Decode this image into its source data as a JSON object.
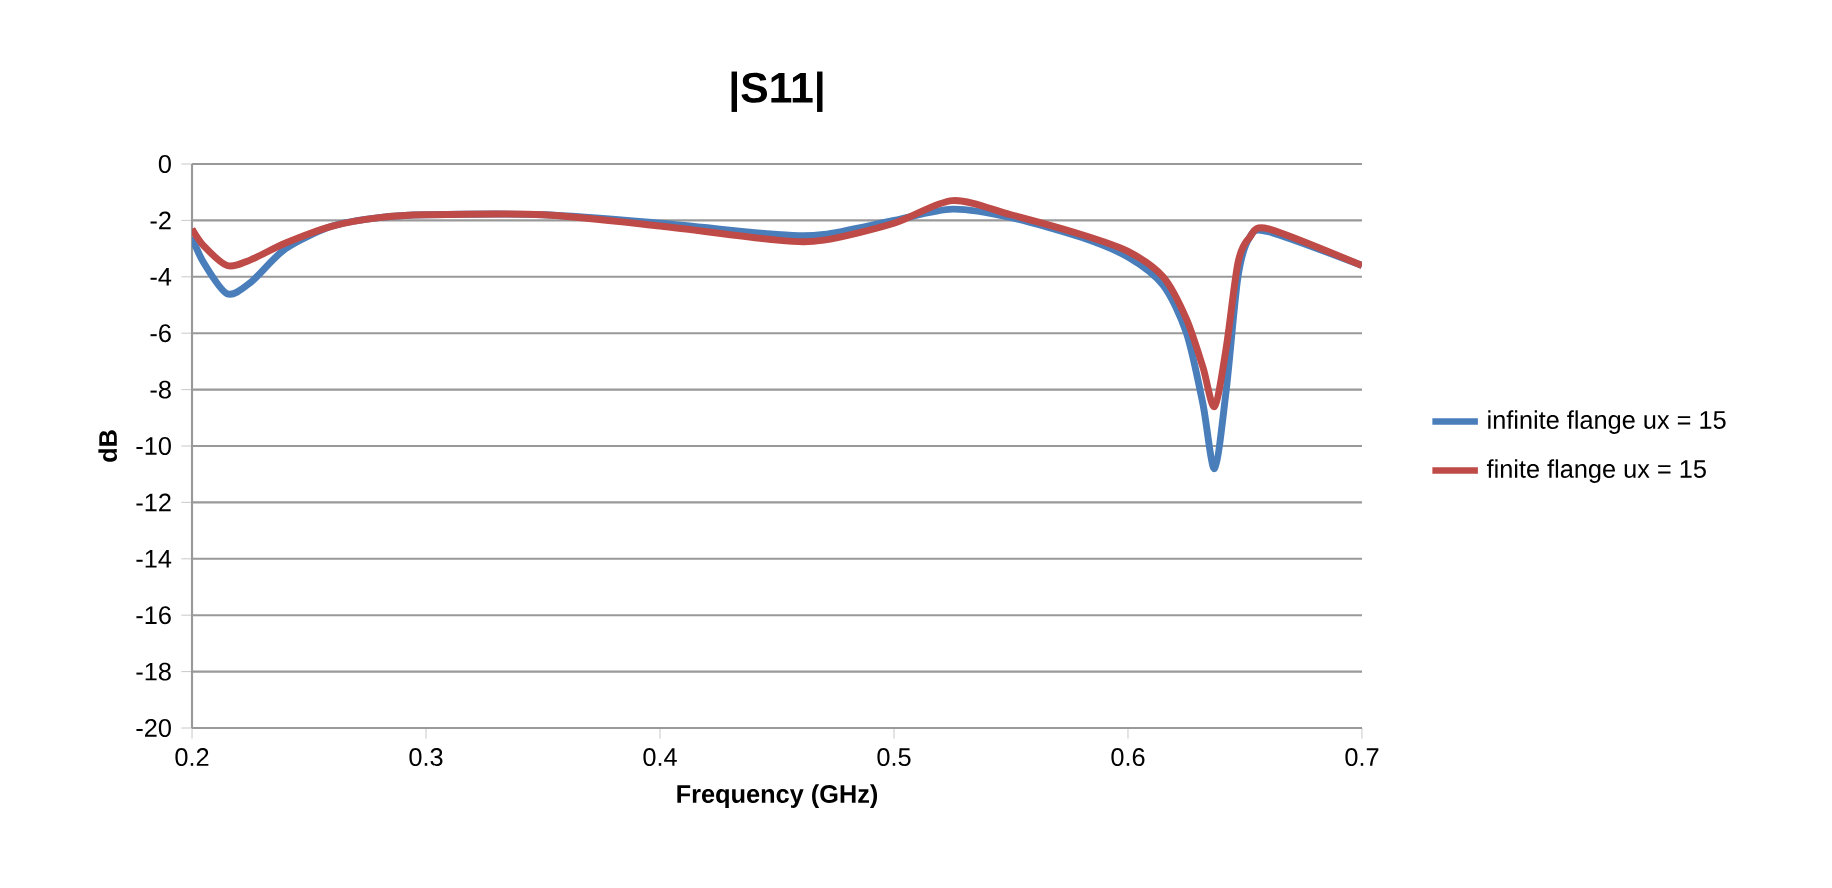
{
  "chart_data": {
    "type": "line",
    "title": "|S11|",
    "xlabel": "Frequency (GHz)",
    "ylabel": "dB",
    "xlim": [
      0.2,
      0.7
    ],
    "xticks": [
      0.2,
      0.3,
      0.4,
      0.5,
      0.6,
      0.7
    ],
    "ylim": [
      -20,
      0
    ],
    "yticks": [
      -20,
      -18,
      -16,
      -14,
      -12,
      -10,
      -8,
      -6,
      -4,
      -2,
      0
    ],
    "grid": "y",
    "legend": "right",
    "marker": "none",
    "line_style": "solid",
    "x": [
      0.2,
      0.205,
      0.215,
      0.225,
      0.24,
      0.26,
      0.28,
      0.3,
      0.35,
      0.4,
      0.45,
      0.47,
      0.5,
      0.525,
      0.55,
      0.58,
      0.6,
      0.615,
      0.625,
      0.632,
      0.637,
      0.642,
      0.647,
      0.652,
      0.66,
      0.7
    ],
    "series": [
      {
        "name": "infinite flange  ux = 15",
        "color": "#4a7ebb",
        "values": [
          -2.6,
          -3.5,
          -4.6,
          -4.2,
          -3.0,
          -2.2,
          -1.9,
          -1.8,
          -1.8,
          -2.1,
          -2.5,
          -2.5,
          -2.0,
          -1.6,
          -1.9,
          -2.6,
          -3.3,
          -4.3,
          -6.0,
          -8.5,
          -10.8,
          -8.0,
          -4.0,
          -2.6,
          -2.4,
          -3.6
        ]
      },
      {
        "name": "finite flange  ux = 15",
        "color": "#be4b48",
        "values": [
          -2.3,
          -2.9,
          -3.6,
          -3.4,
          -2.8,
          -2.2,
          -1.9,
          -1.8,
          -1.8,
          -2.2,
          -2.7,
          -2.7,
          -2.1,
          -1.3,
          -1.8,
          -2.5,
          -3.1,
          -4.0,
          -5.5,
          -7.2,
          -8.6,
          -6.5,
          -3.5,
          -2.6,
          -2.3,
          -3.6
        ]
      }
    ]
  }
}
